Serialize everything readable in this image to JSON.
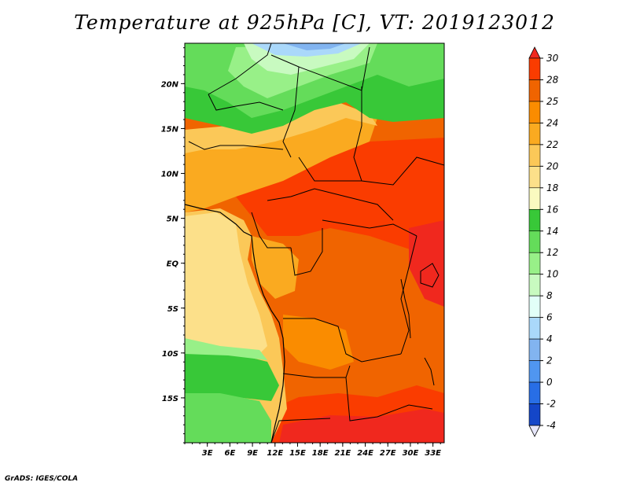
{
  "title": "Temperature at 925hPa [C], VT: 2019123012",
  "credit": "GrADS: IGES/COLA",
  "map": {
    "lat_labels": [
      "20N",
      "15N",
      "10N",
      "5N",
      "EQ",
      "5S",
      "10S",
      "15S"
    ],
    "lon_labels": [
      "3E",
      "6E",
      "9E",
      "12E",
      "15E",
      "18E",
      "21E",
      "24E",
      "27E",
      "30E",
      "33E"
    ],
    "lon_range": [
      0,
      34.5
    ],
    "lat_range": [
      -20,
      24.5
    ]
  },
  "legend": {
    "labels": [
      "30",
      "28",
      "25",
      "24",
      "22",
      "20",
      "18",
      "16",
      "14",
      "12",
      "10",
      "8",
      "6",
      "4",
      "2",
      "0",
      "-2",
      "-4"
    ],
    "colors": [
      "#f0281e",
      "#fa3c00",
      "#f06400",
      "#fa8c00",
      "#faaa20",
      "#fbc858",
      "#fce08a",
      "#fafac0",
      "#38c838",
      "#64dc5a",
      "#98f088",
      "#c8fac0",
      "#e2fff8",
      "#aad8fa",
      "#82b4f0",
      "#5096f0",
      "#286ee6",
      "#1446c8",
      "#0c28a0"
    ]
  }
}
